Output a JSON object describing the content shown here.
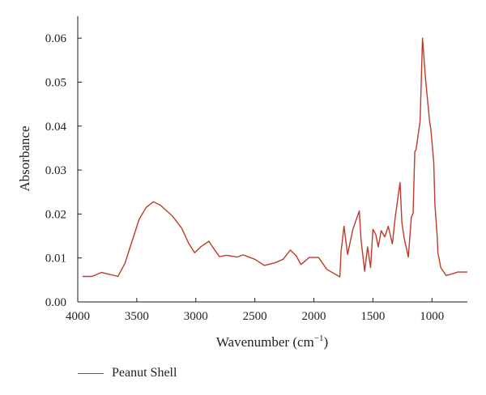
{
  "chart_data": {
    "type": "line",
    "xlabel": "Wavenumber (cm",
    "xlabel_sup": "−1",
    "xlabel_tail": ")",
    "ylabel": "Absorbance",
    "xlim": [
      4000,
      700
    ],
    "ylim": [
      0,
      0.065
    ],
    "x_reversed": true,
    "x_ticks": [
      4000,
      3500,
      3000,
      2500,
      2000,
      1500,
      1000
    ],
    "x_tick_labels": [
      "4000",
      "3500",
      "3000",
      "2500",
      "2000",
      "1500",
      "1000"
    ],
    "y_ticks": [
      0,
      0.01,
      0.02,
      0.03,
      0.04,
      0.05,
      0.06
    ],
    "y_tick_labels": [
      "0.00",
      "0.01",
      "0.02",
      "0.03",
      "0.04",
      "0.05",
      "0.06"
    ],
    "grid": false,
    "legend_position": "bottom-left",
    "series": [
      {
        "name": "Peanut Shell",
        "color": "#c0392b",
        "x": [
          3960,
          3880,
          3800,
          3660,
          3600,
          3550,
          3480,
          3420,
          3360,
          3300,
          3200,
          3120,
          3060,
          3010,
          2960,
          2890,
          2850,
          2800,
          2740,
          2650,
          2600,
          2500,
          2420,
          2330,
          2260,
          2200,
          2150,
          2110,
          2040,
          1960,
          1890,
          1780,
          1770,
          1745,
          1715,
          1670,
          1615,
          1600,
          1570,
          1545,
          1520,
          1500,
          1475,
          1455,
          1430,
          1400,
          1370,
          1335,
          1310,
          1270,
          1255,
          1235,
          1200,
          1175,
          1160,
          1145,
          1135,
          1100,
          1080,
          1055,
          1020,
          1010,
          985,
          975,
          955,
          950,
          925,
          880,
          840,
          780,
          700
        ],
        "y": [
          0.0058,
          0.0058,
          0.0067,
          0.0058,
          0.0088,
          0.013,
          0.0188,
          0.0215,
          0.0228,
          0.022,
          0.0196,
          0.0168,
          0.0133,
          0.0112,
          0.0125,
          0.0138,
          0.0122,
          0.0103,
          0.0106,
          0.0102,
          0.0107,
          0.0097,
          0.0083,
          0.0089,
          0.0097,
          0.0118,
          0.0105,
          0.0085,
          0.0101,
          0.0101,
          0.0074,
          0.0057,
          0.0113,
          0.0172,
          0.0108,
          0.0165,
          0.0207,
          0.014,
          0.007,
          0.0125,
          0.0078,
          0.0165,
          0.0153,
          0.0125,
          0.0162,
          0.0148,
          0.0172,
          0.0132,
          0.0195,
          0.0272,
          0.0182,
          0.0145,
          0.0102,
          0.0192,
          0.0202,
          0.0342,
          0.0346,
          0.0412,
          0.06,
          0.0508,
          0.041,
          0.0395,
          0.0318,
          0.0222,
          0.0148,
          0.0112,
          0.0078,
          0.006,
          0.0063,
          0.0068,
          0.0068
        ]
      }
    ]
  }
}
